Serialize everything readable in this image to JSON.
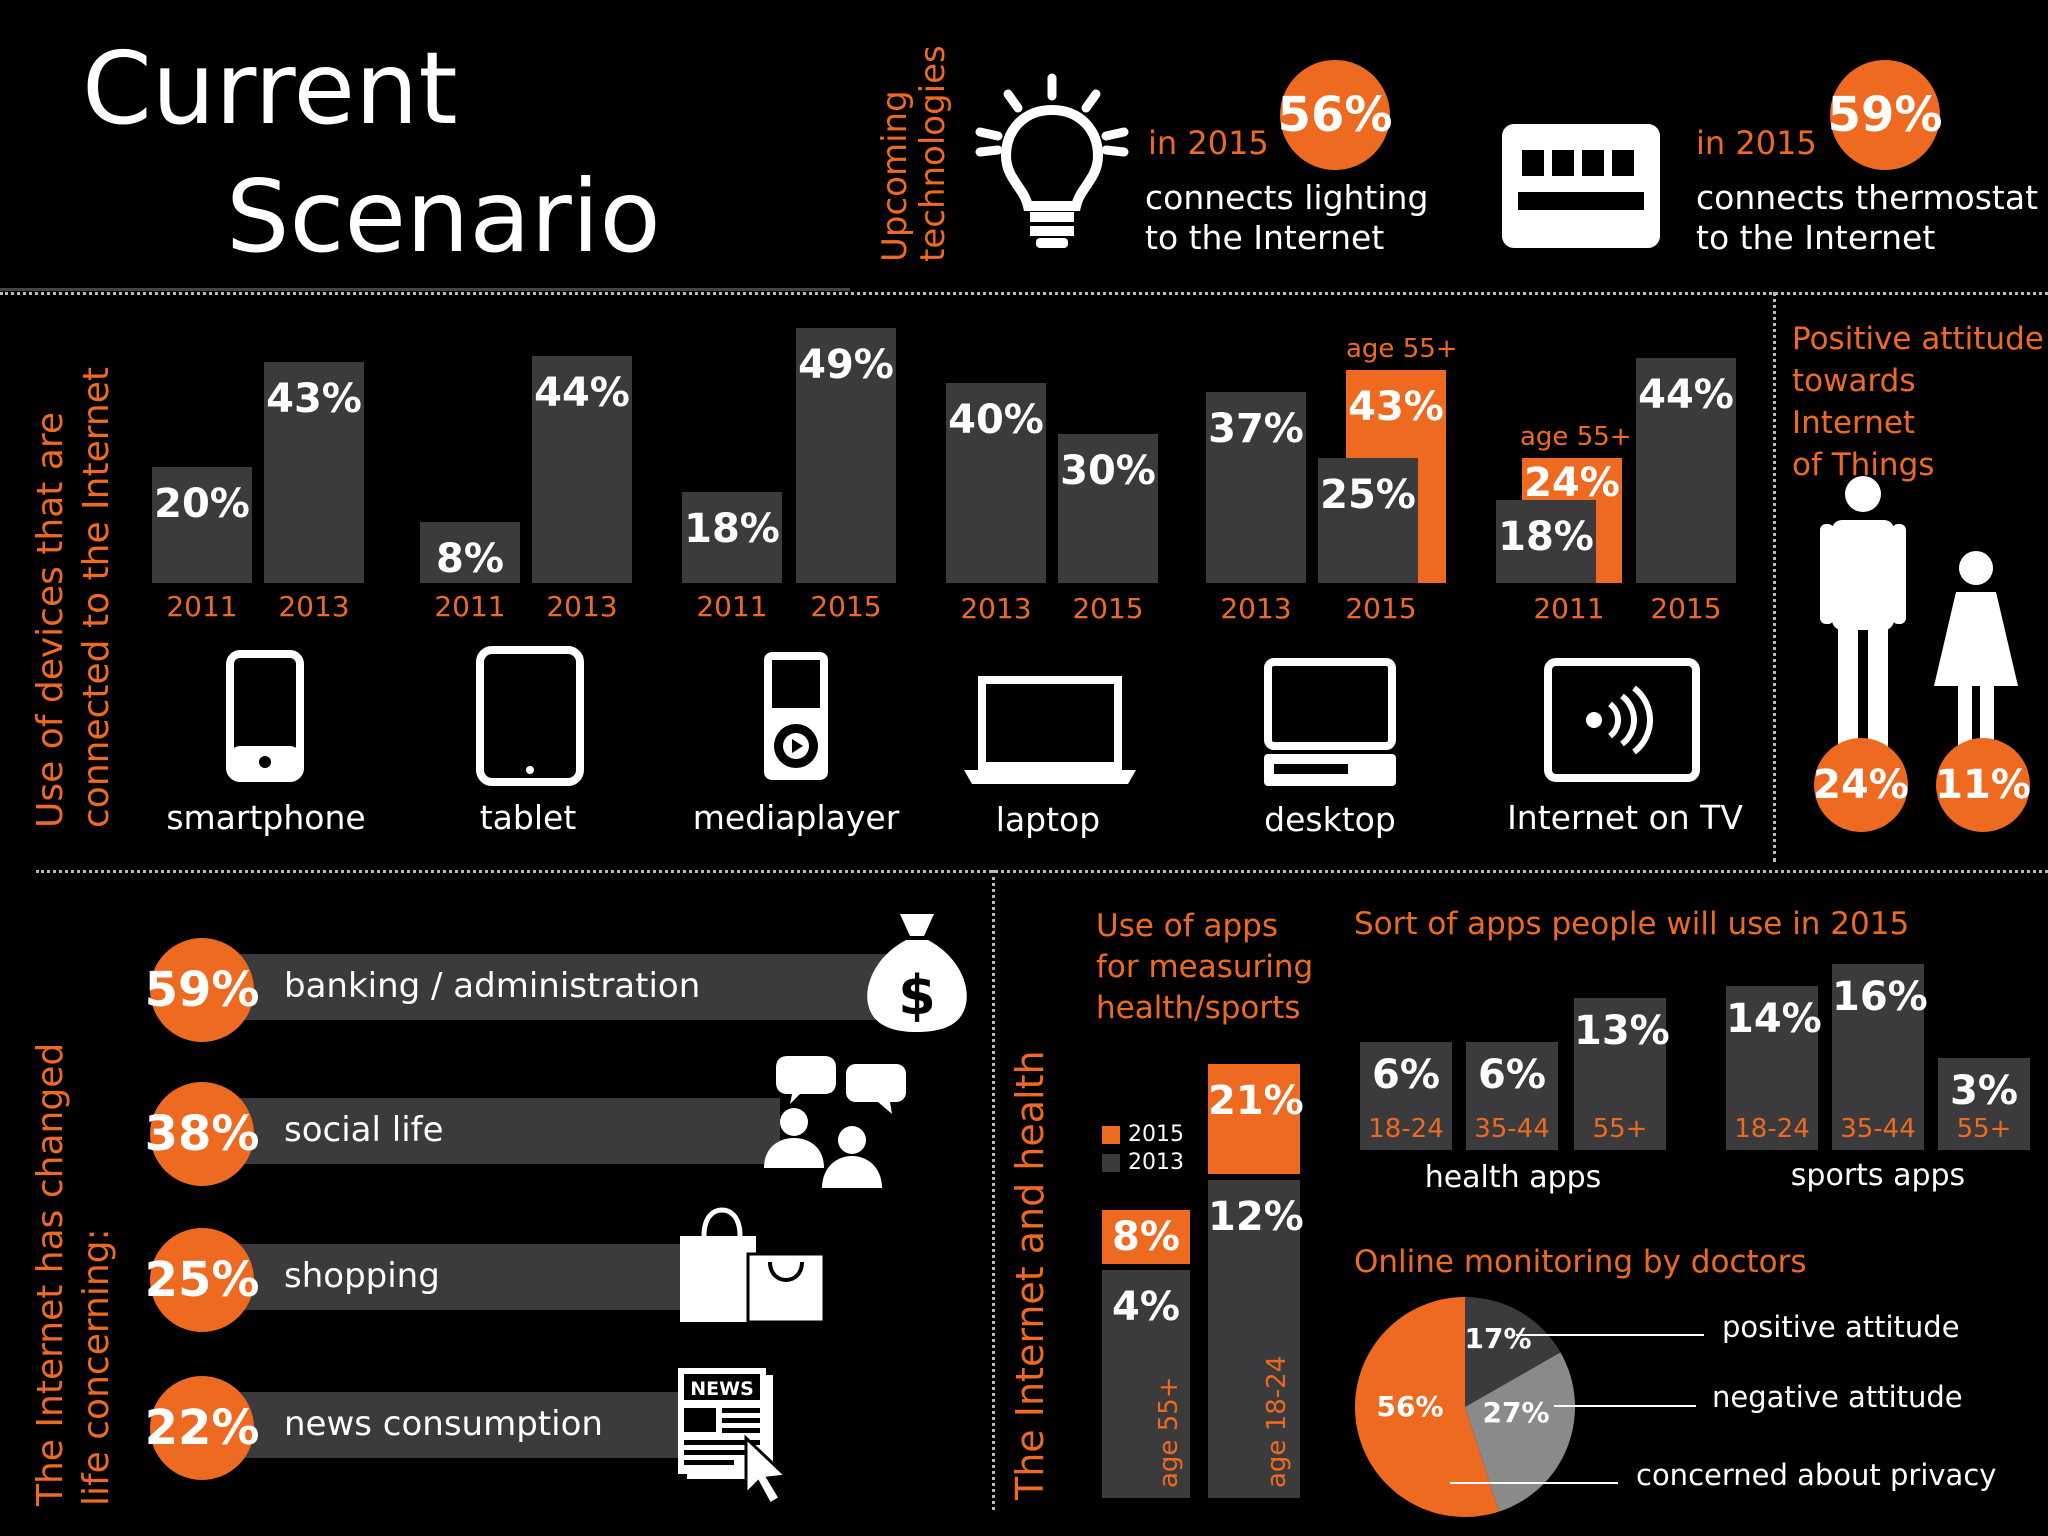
{
  "title": {
    "line1": "Current",
    "line2": "Scenario"
  },
  "upcoming": {
    "heading": "Upcoming technologies",
    "items": [
      {
        "year": "in 2015",
        "pct": "56%",
        "line1": "connects lighting",
        "line2": "to the Internet"
      },
      {
        "year": "in 2015",
        "pct": "59%",
        "line1": "connects thermostat",
        "line2": "to the Internet"
      }
    ]
  },
  "devices": {
    "heading_line1": "Use of devices that are",
    "heading_line2": "connected to the Internet",
    "groups": [
      {
        "name": "smartphone",
        "bars": [
          {
            "year": "2011",
            "value": "20%"
          },
          {
            "year": "2013",
            "value": "43%"
          }
        ]
      },
      {
        "name": "tablet",
        "bars": [
          {
            "year": "2011",
            "value": "8%"
          },
          {
            "year": "2013",
            "value": "44%"
          }
        ]
      },
      {
        "name": "mediaplayer",
        "bars": [
          {
            "year": "2011",
            "value": "18%"
          },
          {
            "year": "2015",
            "value": "49%"
          }
        ]
      },
      {
        "name": "laptop",
        "bars": [
          {
            "year": "2013",
            "value": "40%"
          },
          {
            "year": "2015",
            "value": "30%"
          }
        ]
      },
      {
        "name": "desktop",
        "bars": [
          {
            "year": "2013",
            "value": "37%"
          },
          {
            "year": "2015",
            "value": "25%"
          }
        ],
        "age": {
          "label": "age 55+",
          "value": "43%"
        }
      },
      {
        "name": "Internet on TV",
        "bars": [
          {
            "year": "2011",
            "value": "18%"
          },
          {
            "year": "2015",
            "value": "44%"
          }
        ],
        "age": {
          "label": "age 55+",
          "value": "24%"
        }
      }
    ]
  },
  "attitude": {
    "heading_line1": "Positive attitude",
    "heading_line2": "towards Internet",
    "heading_line3": "of Things",
    "male": "24%",
    "female": "11%"
  },
  "changed": {
    "heading_line1": "The Internet has changed",
    "heading_line2": "life concerning:",
    "items": [
      {
        "pct": "59%",
        "label": "banking / administration",
        "icon": "money-bag-icon"
      },
      {
        "pct": "38%",
        "label": "social life",
        "icon": "people-chat-icon"
      },
      {
        "pct": "25%",
        "label": "shopping",
        "icon": "shopping-bags-icon"
      },
      {
        "pct": "22%",
        "label": "news consumption",
        "icon": "newspaper-icon"
      }
    ],
    "news_badge": "NEWS"
  },
  "health": {
    "heading": "The Internet and health",
    "apps_heading_line1": "Use of apps",
    "apps_heading_line2": "for measuring",
    "apps_heading_line3": "health/sports",
    "legend": [
      {
        "label": "2015",
        "color": "#ee6a21"
      },
      {
        "label": "2013",
        "color": "#3b3a3c"
      }
    ],
    "age55": {
      "label": "age 55+",
      "v2013": "4%",
      "v2015": "8%"
    },
    "age1824": {
      "label": "age 18-24",
      "v2013": "12%",
      "v2015": "21%"
    },
    "sort_heading": "Sort of apps people will use in 2015",
    "health_apps": {
      "label": "health apps",
      "bars": [
        {
          "group": "18-24",
          "value": "6%"
        },
        {
          "group": "35-44",
          "value": "6%"
        },
        {
          "group": "55+",
          "value": "13%"
        }
      ]
    },
    "sports_apps": {
      "label": "sports apps",
      "bars": [
        {
          "group": "18-24",
          "value": "14%"
        },
        {
          "group": "35-44",
          "value": "16%"
        },
        {
          "group": "55+",
          "value": "3%"
        }
      ]
    },
    "monitoring_heading": "Online monitoring by doctors",
    "pie": [
      {
        "label": "positive attitude",
        "value": "17%",
        "color": "#3b3a3c"
      },
      {
        "label": "negative attitude",
        "value": "27%",
        "color": "#8a8a8a"
      },
      {
        "label": "concerned about privacy",
        "value": "56%",
        "color": "#ee6a21"
      }
    ]
  }
}
